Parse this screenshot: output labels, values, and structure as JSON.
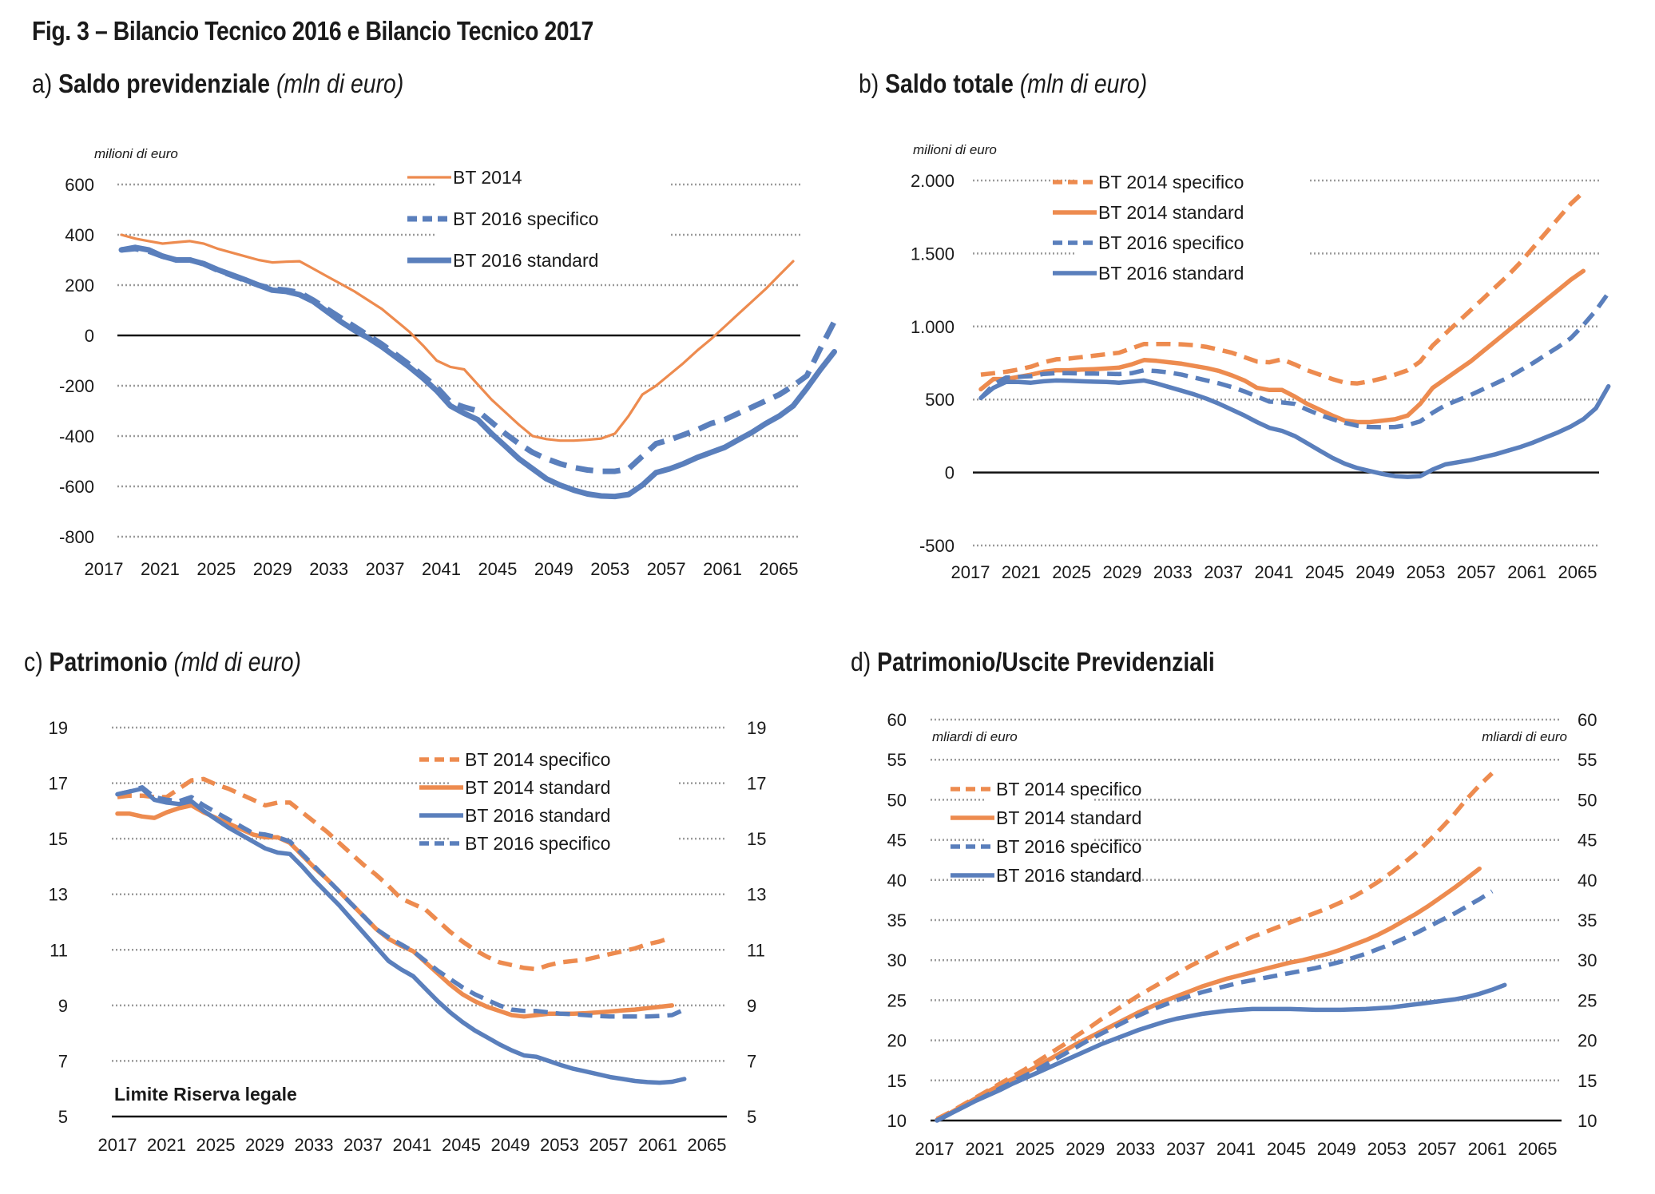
{
  "figure": {
    "title": "Fig. 3 – Bilancio Tecnico 2016 e Bilancio Tecnico 2017"
  },
  "colors": {
    "orange": "#ED8B4F",
    "blue": "#5A7FBC",
    "grid": "#9a9a9a",
    "axis": "#111111"
  },
  "panels": [
    {
      "letter": "a)",
      "title": "Saldo previdenziale",
      "unit": "(mln di euro)"
    },
    {
      "letter": "b)",
      "title": "Saldo totale",
      "unit": "(mln di euro)"
    },
    {
      "letter": "c)",
      "title": "Patrimonio",
      "unit": "(mld di euro)"
    },
    {
      "letter": "d)",
      "title": "Patrimonio/Uscite Previdenziali",
      "unit": ""
    }
  ],
  "chart_data": [
    {
      "id": "a",
      "type": "line",
      "title": "Saldo previdenziale (mln di euro)",
      "ylabel": "milioni di euro",
      "xlabel": "",
      "ylim": [
        -800,
        600
      ],
      "yticks": [
        600,
        400,
        200,
        0,
        -200,
        -400,
        -600,
        -800
      ],
      "ytick_labels": [
        "600",
        "400",
        "200",
        "0",
        "-200",
        "-400",
        "-600",
        "-800"
      ],
      "xticks": [
        "2017",
        "2021",
        "2025",
        "2029",
        "2033",
        "2037",
        "2041",
        "2045",
        "2049",
        "2053",
        "2057",
        "2061",
        "2065"
      ],
      "xlim": [
        2017,
        2066
      ],
      "grid": true,
      "legend_position": "top-center",
      "series": [
        {
          "name": "BT 2014",
          "color": "orange",
          "style": "thin-solid",
          "start": 2017,
          "values": [
            400,
            385,
            375,
            365,
            370,
            375,
            365,
            345,
            330,
            315,
            300,
            290,
            293,
            295,
            265,
            235,
            205,
            175,
            140,
            105,
            60,
            15,
            -40,
            -100,
            -125,
            -135,
            -195,
            -255,
            -305,
            -355,
            -400,
            -412,
            -418,
            -418,
            -415,
            -410,
            -390,
            -320,
            -235,
            -200,
            -155,
            -110,
            -60,
            -15,
            35,
            85,
            135,
            185,
            240,
            295
          ]
        },
        {
          "name": "BT 2016 specifico",
          "color": "blue",
          "style": "thick-dashed",
          "start": 2017,
          "values": [
            340,
            345,
            335,
            315,
            300,
            300,
            285,
            260,
            240,
            220,
            200,
            185,
            180,
            170,
            140,
            105,
            70,
            35,
            0,
            -35,
            -75,
            -115,
            -160,
            -205,
            -265,
            -285,
            -300,
            -345,
            -390,
            -430,
            -465,
            -490,
            -510,
            -525,
            -535,
            -540,
            -540,
            -530,
            -480,
            -430,
            -415,
            -395,
            -375,
            -350,
            -335,
            -310,
            -285,
            -260,
            -235,
            -200,
            -160,
            -50,
            55
          ]
        },
        {
          "name": "BT 2016 standard",
          "color": "blue",
          "style": "thick-solid",
          "start": 2017,
          "values": [
            340,
            350,
            340,
            315,
            300,
            300,
            285,
            262,
            242,
            222,
            200,
            180,
            175,
            162,
            135,
            95,
            55,
            20,
            -10,
            -45,
            -85,
            -125,
            -170,
            -220,
            -280,
            -310,
            -335,
            -390,
            -440,
            -490,
            -530,
            -570,
            -595,
            -615,
            -630,
            -638,
            -640,
            -632,
            -595,
            -545,
            -530,
            -510,
            -485,
            -465,
            -445,
            -415,
            -385,
            -350,
            -320,
            -280,
            -210,
            -135,
            -65
          ]
        }
      ]
    },
    {
      "id": "b",
      "type": "line",
      "title": "Saldo totale (mln di euro)",
      "ylabel": "milioni di euro",
      "xlabel": "",
      "ylim": [
        -500,
        2000
      ],
      "yticks": [
        2000,
        1500,
        1000,
        500,
        0,
        -500
      ],
      "ytick_labels": [
        "2.000",
        "1.500",
        "1.000",
        "500",
        "0",
        "-500"
      ],
      "xticks": [
        "2017",
        "2021",
        "2025",
        "2029",
        "2033",
        "2037",
        "2041",
        "2045",
        "2049",
        "2053",
        "2057",
        "2061",
        "2065"
      ],
      "xlim": [
        2017,
        2066
      ],
      "grid": true,
      "legend_position": "top-center",
      "series": [
        {
          "name": "BT 2014 specifico",
          "color": "orange",
          "style": "dashed",
          "start": 2017,
          "values": [
            670,
            680,
            690,
            705,
            725,
            755,
            775,
            780,
            790,
            800,
            810,
            820,
            850,
            880,
            880,
            880,
            878,
            872,
            860,
            840,
            820,
            790,
            760,
            755,
            775,
            740,
            700,
            670,
            640,
            615,
            610,
            625,
            645,
            670,
            700,
            760,
            870,
            950,
            1030,
            1110,
            1190,
            1270,
            1350,
            1440,
            1540,
            1640,
            1740,
            1840,
            1920
          ]
        },
        {
          "name": "BT 2014 standard",
          "color": "orange",
          "style": "solid",
          "start": 2017,
          "values": [
            570,
            640,
            640,
            655,
            670,
            690,
            700,
            700,
            705,
            708,
            712,
            718,
            740,
            770,
            765,
            755,
            745,
            730,
            715,
            695,
            665,
            630,
            580,
            565,
            565,
            520,
            470,
            430,
            390,
            355,
            345,
            345,
            355,
            365,
            390,
            470,
            580,
            640,
            700,
            760,
            830,
            900,
            970,
            1040,
            1110,
            1180,
            1250,
            1320,
            1380
          ]
        },
        {
          "name": "BT 2016 specifico",
          "color": "blue",
          "style": "dashed",
          "start": 2017,
          "values": [
            510,
            600,
            650,
            655,
            660,
            675,
            680,
            680,
            678,
            678,
            676,
            674,
            680,
            700,
            695,
            685,
            670,
            650,
            630,
            610,
            585,
            555,
            520,
            485,
            480,
            470,
            430,
            395,
            365,
            340,
            320,
            312,
            310,
            312,
            325,
            350,
            410,
            460,
            495,
            530,
            570,
            610,
            650,
            700,
            750,
            805,
            860,
            920,
            1010,
            1110,
            1230
          ]
        },
        {
          "name": "BT 2016 standard",
          "color": "blue",
          "style": "solid",
          "start": 2017,
          "values": [
            510,
            580,
            620,
            620,
            615,
            625,
            630,
            628,
            625,
            622,
            620,
            615,
            622,
            630,
            610,
            585,
            560,
            535,
            505,
            470,
            430,
            390,
            345,
            305,
            285,
            250,
            200,
            150,
            100,
            60,
            30,
            10,
            -10,
            -25,
            -30,
            -25,
            20,
            55,
            70,
            85,
            105,
            125,
            150,
            175,
            205,
            240,
            275,
            315,
            365,
            440,
            590
          ]
        }
      ]
    },
    {
      "id": "c",
      "type": "line",
      "title": "Patrimonio (mld di euro)",
      "ylabel": "",
      "xlabel": "",
      "ylim": [
        5,
        19
      ],
      "yticks": [
        19,
        17,
        15,
        13,
        11,
        9,
        7,
        5
      ],
      "ytick_labels": [
        "19",
        "17",
        "15",
        "13",
        "11",
        "9",
        "7",
        "5"
      ],
      "xticks": [
        "2017",
        "2021",
        "2025",
        "2029",
        "2033",
        "2037",
        "2041",
        "2045",
        "2049",
        "2053",
        "2057",
        "2061",
        "2065"
      ],
      "xlim": [
        2017,
        2066
      ],
      "grid": true,
      "legend_position": "top-right",
      "annotation": "Limite Riserva legale",
      "series": [
        {
          "name": "BT 2014 specifico",
          "color": "orange",
          "style": "dashed",
          "start": 2017,
          "values": [
            16.5,
            16.55,
            16.55,
            16.5,
            16.5,
            16.8,
            17.1,
            17.15,
            16.95,
            16.8,
            16.6,
            16.4,
            16.2,
            16.3,
            16.3,
            15.95,
            15.6,
            15.25,
            14.85,
            14.45,
            14.05,
            13.7,
            13.3,
            12.85,
            12.65,
            12.45,
            12.05,
            11.65,
            11.3,
            11.0,
            10.75,
            10.55,
            10.45,
            10.35,
            10.3,
            10.45,
            10.55,
            10.6,
            10.65,
            10.75,
            10.85,
            10.95,
            11.05,
            11.2,
            11.3,
            11.45
          ]
        },
        {
          "name": "BT 2014 standard",
          "color": "orange",
          "style": "solid",
          "start": 2017,
          "values": [
            15.9,
            15.9,
            15.8,
            15.75,
            15.95,
            16.1,
            16.2,
            15.95,
            15.75,
            15.55,
            15.35,
            15.15,
            15.05,
            15.05,
            14.85,
            14.4,
            13.95,
            13.55,
            13.1,
            12.65,
            12.2,
            11.75,
            11.4,
            11.15,
            10.95,
            10.55,
            10.15,
            9.75,
            9.4,
            9.15,
            8.95,
            8.8,
            8.65,
            8.6,
            8.65,
            8.7,
            8.7,
            8.7,
            8.72,
            8.75,
            8.78,
            8.82,
            8.85,
            8.9,
            8.95,
            9.0
          ]
        },
        {
          "name": "BT 2016 standard",
          "color": "blue",
          "style": "solid",
          "start": 2017,
          "values": [
            16.6,
            16.7,
            16.8,
            16.4,
            16.3,
            16.25,
            16.35,
            16.0,
            15.7,
            15.4,
            15.15,
            14.9,
            14.65,
            14.5,
            14.45,
            14.0,
            13.5,
            13.05,
            12.6,
            12.1,
            11.6,
            11.1,
            10.6,
            10.3,
            10.05,
            9.6,
            9.15,
            8.75,
            8.4,
            8.1,
            7.85,
            7.6,
            7.38,
            7.2,
            7.15,
            7.0,
            6.85,
            6.72,
            6.62,
            6.52,
            6.42,
            6.35,
            6.28,
            6.24,
            6.22,
            6.25,
            6.35
          ]
        },
        {
          "name": "BT 2016 specifico",
          "color": "blue",
          "style": "dashed",
          "start": 2017,
          "values": [
            16.6,
            16.7,
            16.85,
            16.5,
            16.4,
            16.35,
            16.5,
            16.2,
            15.95,
            15.7,
            15.45,
            15.2,
            15.15,
            15.05,
            14.9,
            14.45,
            14.0,
            13.55,
            13.1,
            12.65,
            12.2,
            11.75,
            11.45,
            11.2,
            10.95,
            10.6,
            10.25,
            9.95,
            9.65,
            9.4,
            9.2,
            9.0,
            8.85,
            8.8,
            8.8,
            8.75,
            8.7,
            8.68,
            8.65,
            8.62,
            8.6,
            8.6,
            8.6,
            8.6,
            8.62,
            8.65,
            8.85
          ]
        }
      ]
    },
    {
      "id": "d",
      "type": "line",
      "title": "Patrimonio/Uscite Previdenziali",
      "ylabel": "mliardi di euro",
      "ylabel_right": "mliardi di euro",
      "xlabel": "",
      "ylim": [
        10,
        60
      ],
      "yticks": [
        60,
        55,
        50,
        45,
        40,
        35,
        30,
        25,
        20,
        15,
        10
      ],
      "ytick_labels": [
        "60",
        "55",
        "50",
        "45",
        "40",
        "35",
        "30",
        "25",
        "20",
        "15",
        "10"
      ],
      "xticks": [
        "2017",
        "2021",
        "2025",
        "2029",
        "2033",
        "2037",
        "2041",
        "2045",
        "2049",
        "2053",
        "2057",
        "2061",
        "2065"
      ],
      "xlim": [
        2017,
        2066
      ],
      "grid": true,
      "legend_position": "top-left",
      "series": [
        {
          "name": "BT 2014 specifico",
          "color": "orange",
          "style": "dashed",
          "start": 2017,
          "values": [
            10.2,
            11.0,
            11.9,
            12.8,
            13.7,
            14.6,
            15.5,
            16.4,
            17.4,
            18.4,
            19.4,
            20.5,
            21.5,
            22.6,
            23.6,
            24.6,
            25.6,
            26.5,
            27.4,
            28.3,
            29.2,
            30.0,
            30.8,
            31.5,
            32.2,
            32.9,
            33.5,
            34.1,
            34.7,
            35.3,
            35.9,
            36.5,
            37.2,
            37.9,
            38.8,
            39.8,
            40.9,
            42.1,
            43.4,
            44.9,
            46.5,
            48.2,
            50.1,
            51.8,
            53.3
          ]
        },
        {
          "name": "BT 2014 standard",
          "color": "orange",
          "style": "solid",
          "start": 2017,
          "values": [
            10.1,
            10.9,
            11.8,
            12.7,
            13.6,
            14.4,
            15.2,
            16.0,
            16.8,
            17.7,
            18.6,
            19.5,
            20.3,
            21.1,
            21.9,
            22.7,
            23.5,
            24.2,
            24.9,
            25.5,
            26.1,
            26.7,
            27.2,
            27.7,
            28.1,
            28.5,
            28.9,
            29.3,
            29.7,
            30.0,
            30.4,
            30.8,
            31.3,
            31.9,
            32.5,
            33.2,
            34.0,
            34.9,
            35.8,
            36.8,
            37.9,
            39.0,
            40.2,
            41.4
          ]
        },
        {
          "name": "BT 2016 specifico",
          "color": "blue",
          "style": "dashed",
          "start": 2017,
          "values": [
            10.0,
            10.8,
            11.6,
            12.4,
            13.2,
            14.0,
            14.8,
            15.6,
            16.4,
            17.3,
            18.2,
            19.1,
            20.0,
            20.8,
            21.6,
            22.4,
            23.1,
            23.8,
            24.4,
            25.0,
            25.5,
            26.0,
            26.4,
            26.8,
            27.2,
            27.5,
            27.8,
            28.1,
            28.4,
            28.7,
            29.0,
            29.4,
            29.8,
            30.3,
            30.8,
            31.4,
            32.0,
            32.7,
            33.4,
            34.2,
            35.0,
            35.8,
            36.7,
            37.6,
            38.6
          ]
        },
        {
          "name": "BT 2016 standard",
          "color": "blue",
          "style": "solid",
          "start": 2017,
          "values": [
            10.0,
            10.8,
            11.6,
            12.4,
            13.1,
            13.8,
            14.6,
            15.3,
            16.0,
            16.7,
            17.4,
            18.1,
            18.8,
            19.5,
            20.1,
            20.7,
            21.3,
            21.8,
            22.3,
            22.7,
            23.0,
            23.3,
            23.5,
            23.7,
            23.8,
            23.9,
            23.9,
            23.9,
            23.9,
            23.85,
            23.8,
            23.8,
            23.8,
            23.85,
            23.9,
            24.0,
            24.1,
            24.3,
            24.5,
            24.7,
            24.9,
            25.1,
            25.4,
            25.8,
            26.3,
            26.9
          ]
        }
      ]
    }
  ]
}
